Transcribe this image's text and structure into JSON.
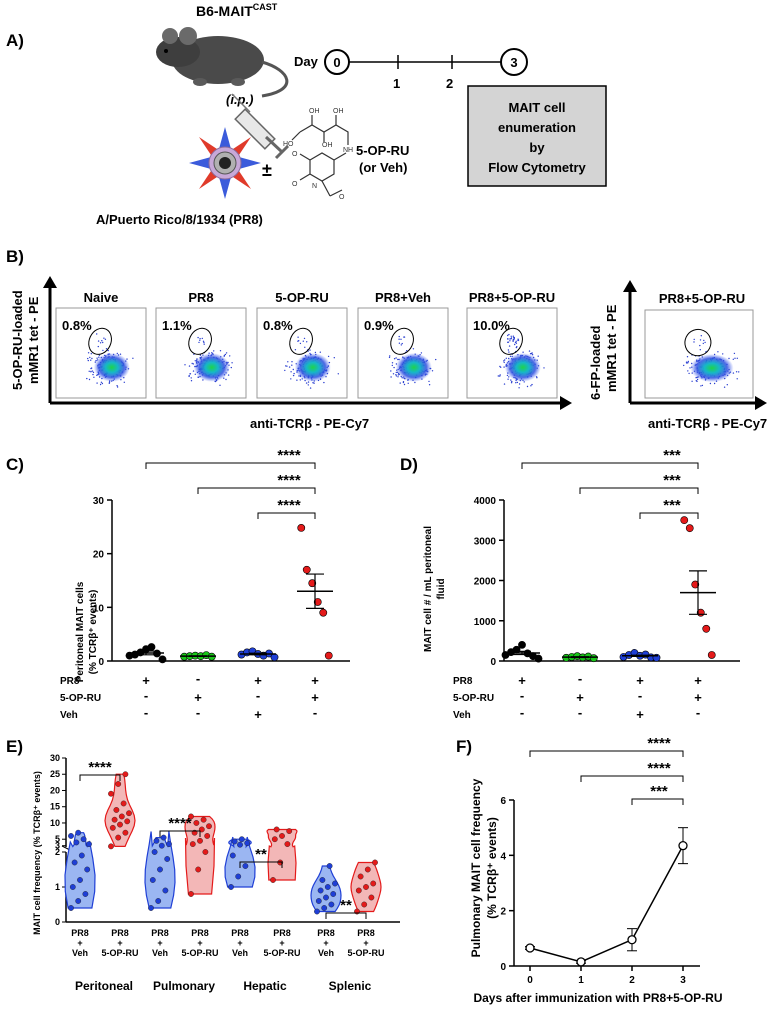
{
  "panel_a": {
    "letter": "A)",
    "mouse_strain": "B6-MAIT",
    "mouse_strain_sup": "CAST",
    "route": "(i.p.)",
    "plus_minus": "±",
    "compound": "5-OP-RU",
    "compound_alt": "(or Veh)",
    "virus": "A/Puerto Rico/8/1934 (PR8)",
    "timeline_label": "Day",
    "days": [
      "0",
      "1",
      "2",
      "3"
    ],
    "box_lines": [
      "MAIT cell",
      "enumeration",
      "by",
      "Flow Cytometry"
    ]
  },
  "panel_b": {
    "letter": "B)",
    "y_label_1": "5-OP-RU-loaded",
    "y_label_2": "mMR1 tet - PE",
    "x_label": "anti-TCRβ - PE-Cy7",
    "plots": [
      {
        "title": "Naive",
        "pct": "0.8%"
      },
      {
        "title": "PR8",
        "pct": "1.1%"
      },
      {
        "title": "5-OP-RU",
        "pct": "0.8%"
      },
      {
        "title": "PR8+Veh",
        "pct": "0.9%"
      },
      {
        "title": "PR8+5-OP-RU",
        "pct": "10.0%"
      }
    ],
    "control": {
      "title": "PR8+5-OP-RU",
      "y_label_1": "6-FP-loaded",
      "y_label_2": "mMR1 tet - PE",
      "x_label": "anti-TCRβ - PE-Cy7"
    }
  },
  "conditions": {
    "row_labels": [
      "PR8",
      "5-OP-RU",
      "Veh"
    ],
    "cols": [
      [
        "+",
        "-",
        "-"
      ],
      [
        "-",
        "+",
        "-"
      ],
      [
        "+",
        "-",
        "+"
      ],
      [
        "+",
        "+",
        "-"
      ]
    ]
  },
  "chart_data": [
    {
      "id": "C",
      "letter": "C)",
      "type": "scatter",
      "ylabel_1": "Peritoneal MAIT cells",
      "ylabel_2": "(% TCRβ⁺ events)",
      "ylim": [
        0,
        30
      ],
      "yticks": [
        "0",
        "10",
        "20",
        "30"
      ],
      "tick_values": [
        0,
        10,
        20,
        30
      ],
      "colors": [
        "#000000",
        "#18c418",
        "#1f3fd6",
        "#e41a1a"
      ],
      "groups": [
        {
          "values": [
            1.0,
            1.2,
            1.6,
            2.2,
            2.6,
            1.4,
            0.3
          ],
          "mean": 1.5,
          "sem": 0.35
        },
        {
          "values": [
            0.8,
            0.9,
            1.0,
            0.9,
            1.1,
            0.8
          ],
          "mean": 0.9,
          "sem": 0.05
        },
        {
          "values": [
            1.2,
            1.6,
            1.8,
            1.3,
            1.0,
            1.4,
            0.7
          ],
          "mean": 1.3,
          "sem": 0.15
        },
        {
          "values": [
            24.8,
            17.0,
            14.5,
            11.0,
            9.0,
            1.0
          ],
          "mean": 13.0,
          "sem": 3.2
        }
      ],
      "sig": [
        {
          "from": 0,
          "to": 3,
          "label": "****"
        },
        {
          "from": 1,
          "to": 3,
          "label": "****"
        },
        {
          "from": 2,
          "to": 3,
          "label": "****"
        }
      ]
    },
    {
      "id": "D",
      "letter": "D)",
      "type": "scatter",
      "ylabel_1": "MAIT cell # / mL peritoneal",
      "ylabel_2": "fluid",
      "ylim": [
        0,
        4000
      ],
      "yticks": [
        "0",
        "1000",
        "2000",
        "3000",
        "4000"
      ],
      "tick_values": [
        0,
        1000,
        2000,
        3000,
        4000
      ],
      "colors": [
        "#000000",
        "#18c418",
        "#1f3fd6",
        "#e41a1a"
      ],
      "groups": [
        {
          "values": [
            150,
            220,
            280,
            400,
            190,
            120,
            60
          ],
          "mean": 200,
          "sem": 40
        },
        {
          "values": [
            80,
            100,
            120,
            90,
            110,
            70
          ],
          "mean": 95,
          "sem": 10
        },
        {
          "values": [
            100,
            150,
            200,
            130,
            160,
            90,
            80
          ],
          "mean": 130,
          "sem": 15
        },
        {
          "values": [
            3500,
            3300,
            1900,
            1200,
            800,
            150
          ],
          "mean": 1700,
          "sem": 540
        }
      ],
      "sig": [
        {
          "from": 0,
          "to": 3,
          "label": "***"
        },
        {
          "from": 1,
          "to": 3,
          "label": "***"
        },
        {
          "from": 2,
          "to": 3,
          "label": "***"
        }
      ]
    },
    {
      "id": "E",
      "letter": "E)",
      "type": "violin",
      "ylabel": "MAIT cell frequency (% TCRβ⁺ events)",
      "yticks_upper": [
        "3",
        "5",
        "10",
        "15",
        "20",
        "25",
        "30"
      ],
      "yticks_lower": [
        "0",
        "1",
        "2"
      ],
      "tick_values_upper": [
        3,
        5,
        10,
        15,
        20,
        25,
        30
      ],
      "tick_values_lower": [
        0,
        1,
        2
      ],
      "group_labels": [
        "Peritoneal",
        "Pulmonary",
        "Hepatic",
        "Splenic"
      ],
      "sublabels": [
        [
          "PR8",
          "+",
          "Veh"
        ],
        [
          "PR8",
          "+",
          "5-OP-RU"
        ]
      ],
      "colors": [
        "#1f3fd6",
        "#e41a1a"
      ],
      "groups": [
        {
          "veh": [
            0.4,
            0.6,
            0.8,
            1.0,
            1.2,
            1.5,
            1.7,
            1.9,
            3.5,
            4.0,
            5.0,
            6.0,
            7.0
          ],
          "op": [
            2.8,
            5.5,
            7.0,
            8.5,
            9.5,
            10.5,
            11.0,
            12.0,
            13.0,
            14.0,
            16.0,
            19.0,
            22.0,
            25.0
          ]
        },
        {
          "veh": [
            0.4,
            0.6,
            0.9,
            1.2,
            1.5,
            1.8,
            2.0,
            3.0,
            3.5,
            4.5,
            5.5
          ],
          "op": [
            0.8,
            1.5,
            2.0,
            3.5,
            4.5,
            6.0,
            7.0,
            8.0,
            9.0,
            10.0,
            11.0,
            12.0
          ]
        },
        {
          "veh": [
            1.0,
            1.3,
            1.6,
            1.9,
            3.3,
            3.8,
            4.3,
            5.0
          ],
          "op": [
            1.2,
            1.7,
            3.5,
            5.0,
            6.0,
            7.5,
            8.0
          ]
        },
        {
          "veh": [
            0.3,
            0.4,
            0.5,
            0.6,
            0.7,
            0.8,
            0.9,
            1.0,
            1.1,
            1.2,
            1.6
          ],
          "op": [
            0.3,
            0.5,
            0.7,
            0.9,
            1.0,
            1.1,
            1.3,
            1.5,
            1.7
          ]
        }
      ],
      "sig": [
        "****",
        "****",
        "**",
        "**"
      ]
    },
    {
      "id": "F",
      "letter": "F)",
      "type": "line",
      "ylabel_1": "Pulmonary MAIT cell frequency",
      "ylabel_2": "(% TCRβ⁺ events)",
      "xlabel": "Days after immunization with PR8+5-OP-RU",
      "x": [
        0,
        1,
        2,
        3
      ],
      "xticks": [
        "0",
        "1",
        "2",
        "3"
      ],
      "y": [
        0.65,
        0.15,
        0.95,
        4.35
      ],
      "err": [
        0.05,
        0.05,
        0.4,
        0.65
      ],
      "ylim": [
        0,
        6
      ],
      "yticks": [
        "0",
        "2",
        "4",
        "6"
      ],
      "tick_values": [
        0,
        2,
        4,
        6
      ],
      "sig": [
        {
          "from": 0,
          "to": 3,
          "label": "****"
        },
        {
          "from": 1,
          "to": 3,
          "label": "****"
        },
        {
          "from": 2,
          "to": 3,
          "label": "***"
        }
      ]
    }
  ]
}
